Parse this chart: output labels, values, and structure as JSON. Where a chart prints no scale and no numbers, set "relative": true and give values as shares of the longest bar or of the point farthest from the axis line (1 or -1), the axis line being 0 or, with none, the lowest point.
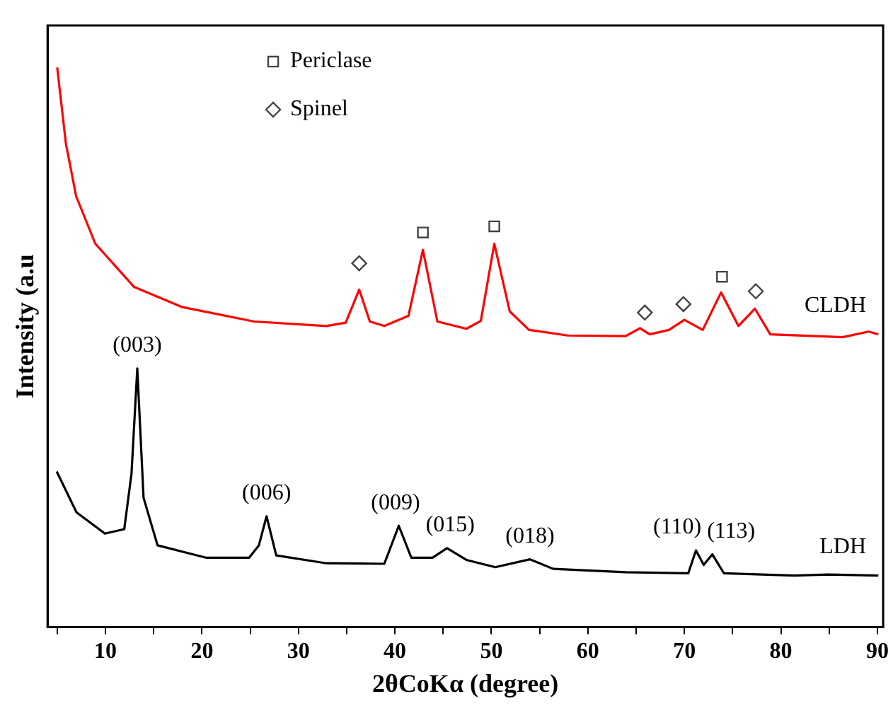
{
  "chart_data": {
    "type": "line",
    "relative": true,
    "xlabel": "2θCoKα (degree)",
    "ylabel": "Intensity (a.u",
    "xlim": [
      4,
      90.6
    ],
    "xticks": [
      {
        "value": 5,
        "label": null
      },
      10,
      {
        "value": 15,
        "label": null
      },
      20,
      {
        "value": 25,
        "label": null
      },
      30,
      {
        "value": 35,
        "label": null
      },
      40,
      {
        "value": 45,
        "label": null
      },
      50,
      {
        "value": 55,
        "label": null
      },
      60,
      {
        "value": 65,
        "label": null
      },
      70,
      {
        "value": 75,
        "label": null
      },
      80,
      {
        "value": 85,
        "label": null
      },
      90
    ],
    "grid": false,
    "legend": "top",
    "tick_labels": "x",
    "series": [
      {
        "name": "CLDH",
        "type": "line",
        "color": "#ff0000",
        "x": [
          5,
          5.9,
          6.96,
          8.95,
          12.95,
          17.9,
          25.4,
          32.9,
          34.9,
          36.3,
          37.4,
          38.9,
          41.4,
          42.9,
          44.4,
          47.4,
          48.9,
          50.3,
          51.9,
          53.9,
          57.9,
          63.9,
          65.4,
          66.4,
          68.4,
          70,
          71.9,
          73.8,
          75.6,
          77.3,
          78.9,
          86.4,
          89.1,
          90.1
        ],
        "values": [
          1,
          0.864,
          0.77,
          0.685,
          0.608,
          0.572,
          0.546,
          0.538,
          0.544,
          0.603,
          0.546,
          0.538,
          0.556,
          0.674,
          0.546,
          0.533,
          0.547,
          0.685,
          0.564,
          0.531,
          0.521,
          0.52,
          0.534,
          0.523,
          0.531,
          0.549,
          0.531,
          0.598,
          0.538,
          0.569,
          0.523,
          0.518,
          0.528,
          0.523
        ]
      },
      {
        "name": "LDH",
        "type": "line",
        "color": "#000000",
        "x": [
          4.95,
          7,
          9.95,
          11.95,
          12.7,
          13.3,
          13.95,
          15.4,
          20.4,
          24.9,
          25.9,
          26.7,
          27.7,
          32.9,
          38.9,
          40.4,
          41.7,
          43.9,
          45.4,
          47.4,
          50.4,
          54,
          56.4,
          63.9,
          70.4,
          71.2,
          72,
          72.9,
          74.1,
          81.4,
          84.9,
          90.1
        ],
        "values": [
          0.278,
          0.205,
          0.167,
          0.175,
          0.274,
          0.462,
          0.231,
          0.146,
          0.124,
          0.124,
          0.146,
          0.198,
          0.128,
          0.114,
          0.113,
          0.181,
          0.124,
          0.124,
          0.141,
          0.12,
          0.107,
          0.121,
          0.104,
          0.098,
          0.096,
          0.137,
          0.111,
          0.13,
          0.096,
          0.092,
          0.094,
          0.092
        ]
      },
      {
        "name": "Periclase",
        "type": "scatter",
        "marker": "square",
        "color": "#444444",
        "x": [
          42.9,
          50.3,
          73.9
        ],
        "values": [
          0.705,
          0.716,
          0.626
        ]
      },
      {
        "name": "Spinel",
        "type": "scatter",
        "marker": "diamond",
        "color": "#444444",
        "x": [
          36.3,
          65.9,
          69.9,
          77.4
        ],
        "values": [
          0.65,
          0.562,
          0.577,
          0.6
        ]
      }
    ],
    "annotations": [
      {
        "text": "(003)",
        "x": 13.3,
        "y": 0.462
      },
      {
        "text": "(006)",
        "x": 26.7,
        "y": 0.198
      },
      {
        "text": "(009)",
        "x": 40.4,
        "y": 0.181
      },
      {
        "text": "(015)",
        "x": 45.4,
        "y": 0.141
      },
      {
        "text": "(018)",
        "x": 54,
        "y": 0.121
      },
      {
        "text": "(110)",
        "x": 71.2,
        "y": 0.137
      },
      {
        "text": "(113)",
        "x": 72.9,
        "y": 0.13
      }
    ]
  }
}
